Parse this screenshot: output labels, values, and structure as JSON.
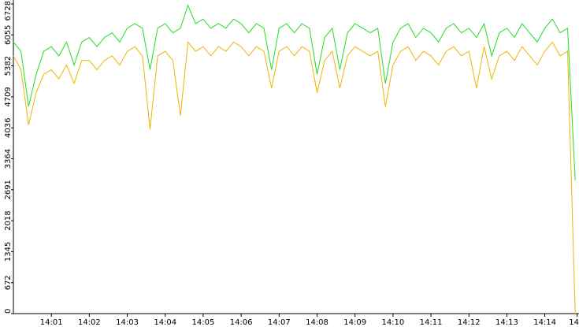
{
  "chart_data": {
    "type": "line",
    "x": [
      0,
      0.2,
      0.4,
      0.6,
      0.8,
      1.0,
      1.2,
      1.4,
      1.6,
      1.8,
      2.0,
      2.2,
      2.4,
      2.6,
      2.8,
      3.0,
      3.2,
      3.4,
      3.6,
      3.8,
      4.0,
      4.2,
      4.4,
      4.6,
      4.8,
      5.0,
      5.2,
      5.4,
      5.6,
      5.8,
      6.0,
      6.2,
      6.4,
      6.6,
      6.8,
      7.0,
      7.2,
      7.4,
      7.6,
      7.8,
      8.0,
      8.2,
      8.4,
      8.6,
      8.8,
      9.0,
      9.2,
      9.4,
      9.6,
      9.8,
      10.0,
      10.2,
      10.4,
      10.6,
      10.8,
      11.0,
      11.2,
      11.4,
      11.6,
      11.8,
      12.0,
      12.2,
      12.4,
      12.6,
      12.8,
      13.0,
      13.2,
      13.4,
      13.6,
      13.8,
      14.0,
      14.2,
      14.4,
      14.6,
      14.8
    ],
    "series": [
      {
        "color": "#f0b400",
        "values": [
          5600,
          5300,
          4100,
          4800,
          5200,
          5300,
          5100,
          5400,
          5000,
          5500,
          5500,
          5300,
          5500,
          5600,
          5400,
          5700,
          5800,
          5600,
          4000,
          5600,
          5700,
          5500,
          4300,
          5900,
          5700,
          5800,
          5600,
          5800,
          5700,
          5900,
          5800,
          5600,
          5800,
          5700,
          4900,
          5700,
          5800,
          5600,
          5800,
          5700,
          4800,
          5500,
          5700,
          4900,
          5600,
          5800,
          5700,
          5600,
          5700,
          4500,
          5400,
          5700,
          5800,
          5500,
          5700,
          5600,
          5400,
          5700,
          5800,
          5600,
          5700,
          4900,
          5800,
          5100,
          5600,
          5700,
          5500,
          5800,
          5600,
          5400,
          5700,
          5900,
          5600,
          5700,
          0
        ]
      },
      {
        "color": "#22dd22",
        "values": [
          5900,
          5700,
          4500,
          5200,
          5700,
          5800,
          5600,
          5900,
          5400,
          5900,
          6000,
          5800,
          6000,
          6100,
          5900,
          6200,
          6300,
          6200,
          5300,
          6200,
          6300,
          6100,
          6200,
          6700,
          6300,
          6400,
          6200,
          6300,
          6200,
          6400,
          6300,
          6100,
          6300,
          6200,
          5300,
          6200,
          6300,
          6100,
          6300,
          6200,
          5200,
          6000,
          6200,
          5300,
          6100,
          6300,
          6200,
          6100,
          6200,
          5000,
          5900,
          6200,
          6300,
          6000,
          6200,
          6100,
          5900,
          6200,
          6300,
          6100,
          6200,
          6000,
          6300,
          5600,
          6100,
          6200,
          6000,
          6300,
          6100,
          5900,
          6200,
          6400,
          6100,
          6200,
          2900
        ]
      }
    ],
    "xlim": [
      0,
      14.9
    ],
    "xticks": [
      {
        "value": 1,
        "label": "14:01"
      },
      {
        "value": 2,
        "label": "14:02"
      },
      {
        "value": 3,
        "label": "14:03"
      },
      {
        "value": 4,
        "label": "14:04"
      },
      {
        "value": 5,
        "label": "14:05"
      },
      {
        "value": 6,
        "label": "14:06"
      },
      {
        "value": 7,
        "label": "14:07"
      },
      {
        "value": 8,
        "label": "14:08"
      },
      {
        "value": 9,
        "label": "14:09"
      },
      {
        "value": 10,
        "label": "14:10"
      },
      {
        "value": 11,
        "label": "14:11"
      },
      {
        "value": 12,
        "label": "14:12"
      },
      {
        "value": 13,
        "label": "14:13"
      },
      {
        "value": 14,
        "label": "14:14"
      },
      {
        "value": 14.85,
        "label": "14"
      }
    ],
    "ylim": [
      0,
      6728
    ],
    "yticks": [
      0,
      672,
      1345,
      2018,
      2691,
      3364,
      4036,
      4709,
      5382,
      6055,
      6728
    ]
  }
}
